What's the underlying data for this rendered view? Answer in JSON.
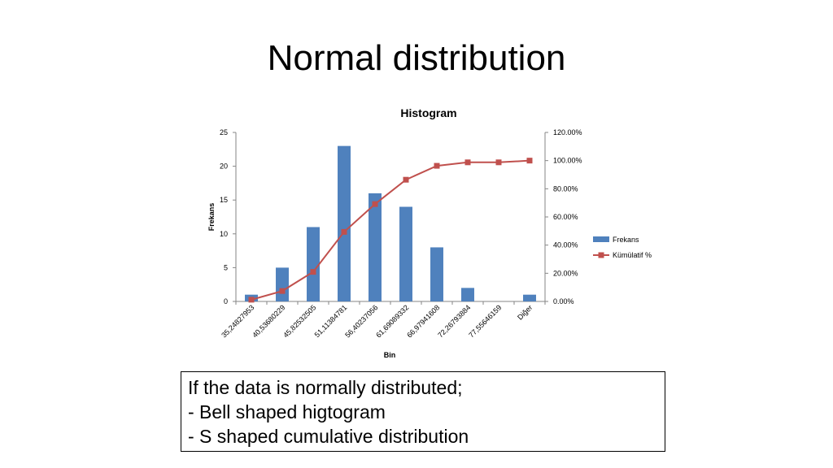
{
  "slide": {
    "title": "Normal distribution"
  },
  "note": {
    "lines": [
      "If the data is normally distributed;",
      "- Bell shaped higtogram",
      "- S shaped cumulative distribution"
    ]
  },
  "chart_data": {
    "type": "bar",
    "title": "Histogram",
    "xlabel": "Bin",
    "ylabel": "Frekans",
    "categories": [
      "35,24827953",
      "40,53680229",
      "45,82532505",
      "51,11384781",
      "56,40237056",
      "61,69089332",
      "66,97941608",
      "72,26793884",
      "77,55646159",
      "Diğer"
    ],
    "series": [
      {
        "name": "Frekans",
        "type": "bar",
        "axis": "left",
        "values": [
          1,
          5,
          11,
          23,
          16,
          14,
          8,
          2,
          0,
          1
        ],
        "color": "#4F81BD"
      },
      {
        "name": "Kümülatif %",
        "type": "line",
        "axis": "right",
        "values": [
          1.23,
          7.41,
          20.99,
          49.38,
          69.14,
          86.42,
          96.3,
          98.77,
          98.77,
          100.0
        ],
        "color": "#C0504D"
      }
    ],
    "ylim": [
      0,
      25
    ],
    "y_ticks": [
      "0",
      "5",
      "10",
      "15",
      "20",
      "25"
    ],
    "y2lim": [
      0,
      120
    ],
    "y2_ticks": [
      "0.00%",
      "20.00%",
      "40.00%",
      "60.00%",
      "80.00%",
      "100.00%",
      "120.00%"
    ],
    "grid": false,
    "legend_position": "right"
  }
}
